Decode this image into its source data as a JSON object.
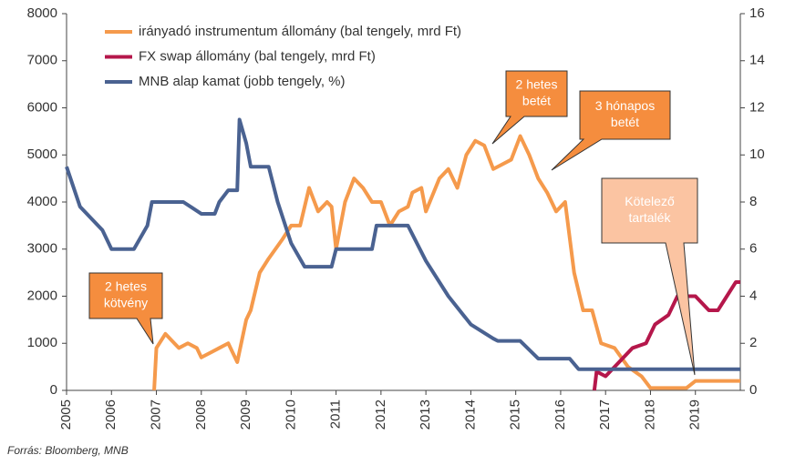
{
  "chart_data": {
    "type": "line",
    "xlim": [
      2005,
      2020
    ],
    "xticks": [
      2005,
      2006,
      2007,
      2008,
      2009,
      2010,
      2011,
      2012,
      2013,
      2014,
      2015,
      2016,
      2017,
      2018,
      2019
    ],
    "ylim": [
      0,
      8000
    ],
    "yticks": [
      0,
      1000,
      2000,
      3000,
      4000,
      5000,
      6000,
      7000,
      8000
    ],
    "y2lim": [
      0,
      16
    ],
    "y2ticks": [
      0,
      2,
      4,
      6,
      8,
      10,
      12,
      14,
      16
    ],
    "series": [
      {
        "name": "irányadó instrumentum állomány (bal tengely, mrd Ft)",
        "color": "#f59a4c",
        "x": [
          2006.95,
          2007.0,
          2007.2,
          2007.4,
          2007.5,
          2007.7,
          2007.9,
          2008.0,
          2008.2,
          2008.4,
          2008.6,
          2008.8,
          2009.0,
          2009.1,
          2009.3,
          2009.5,
          2009.8,
          2010.0,
          2010.2,
          2010.4,
          2010.6,
          2010.8,
          2010.9,
          2011.0,
          2011.2,
          2011.4,
          2011.6,
          2011.8,
          2012.0,
          2012.2,
          2012.4,
          2012.6,
          2012.7,
          2012.9,
          2013.0,
          2013.3,
          2013.5,
          2013.7,
          2013.9,
          2014.1,
          2014.3,
          2014.5,
          2014.7,
          2014.9,
          2015.1,
          2015.3,
          2015.5,
          2015.7,
          2015.9,
          2016.1,
          2016.3,
          2016.5,
          2016.7,
          2016.9,
          2017.2,
          2017.5,
          2017.8,
          2018.0,
          2018.8,
          2019.0,
          2020.0
        ],
        "values": [
          0,
          900,
          1200,
          1000,
          900,
          1000,
          900,
          700,
          800,
          900,
          1000,
          600,
          1500,
          1700,
          2500,
          2800,
          3200,
          3500,
          3500,
          4300,
          3800,
          4000,
          3900,
          3000,
          4000,
          4500,
          4300,
          4000,
          4000,
          3500,
          3800,
          3900,
          4200,
          4300,
          3800,
          4500,
          4700,
          4300,
          5000,
          5300,
          5200,
          4700,
          4800,
          4900,
          5400,
          5000,
          4500,
          4200,
          3800,
          4000,
          2500,
          1700,
          1700,
          1000,
          900,
          500,
          300,
          50,
          50,
          200,
          200
        ]
      },
      {
        "name": "FX swap állomány (bal tengely, mrd Ft)",
        "color": "#b5174b",
        "x": [
          2016.75,
          2016.8,
          2017.0,
          2017.3,
          2017.6,
          2017.9,
          2018.1,
          2018.4,
          2018.6,
          2019.0,
          2019.3,
          2019.5,
          2019.7,
          2019.9,
          2020.0
        ],
        "values": [
          0,
          400,
          300,
          600,
          900,
          1000,
          1400,
          1600,
          2000,
          2000,
          1700,
          1700,
          2000,
          2300,
          2300
        ]
      },
      {
        "name": "MNB alap kamat (jobb tengely, %)",
        "color": "#4a6291",
        "axis": "y2",
        "x": [
          2005.0,
          2005.3,
          2005.8,
          2006.0,
          2006.5,
          2006.8,
          2006.9,
          2007.6,
          2007.8,
          2008.0,
          2008.3,
          2008.4,
          2008.6,
          2008.8,
          2008.85,
          2009.0,
          2009.1,
          2009.5,
          2009.7,
          2010.0,
          2010.3,
          2010.9,
          2011.0,
          2011.8,
          2011.9,
          2012.6,
          2013.0,
          2013.5,
          2014.0,
          2014.5,
          2014.6,
          2015.1,
          2015.5,
          2016.2,
          2016.4,
          2020.0
        ],
        "values": [
          9.5,
          7.8,
          6.8,
          6.0,
          6.0,
          7.0,
          8.0,
          8.0,
          7.75,
          7.5,
          7.5,
          8.0,
          8.5,
          8.5,
          11.5,
          10.5,
          9.5,
          9.5,
          8.0,
          6.25,
          5.25,
          5.25,
          6.0,
          6.0,
          7.0,
          7.0,
          5.5,
          4.0,
          2.8,
          2.2,
          2.1,
          2.1,
          1.35,
          1.35,
          0.9,
          0.9
        ]
      }
    ],
    "annotations": [
      {
        "lines": [
          "2 hetes",
          "kötvény"
        ]
      },
      {
        "lines": [
          "2 hetes",
          "betét"
        ]
      },
      {
        "lines": [
          "3 hónapos",
          "betét"
        ]
      },
      {
        "lines": [
          "Kötelező",
          "tartalék"
        ]
      }
    ],
    "source": "Forrás: Bloomberg, MNB"
  }
}
